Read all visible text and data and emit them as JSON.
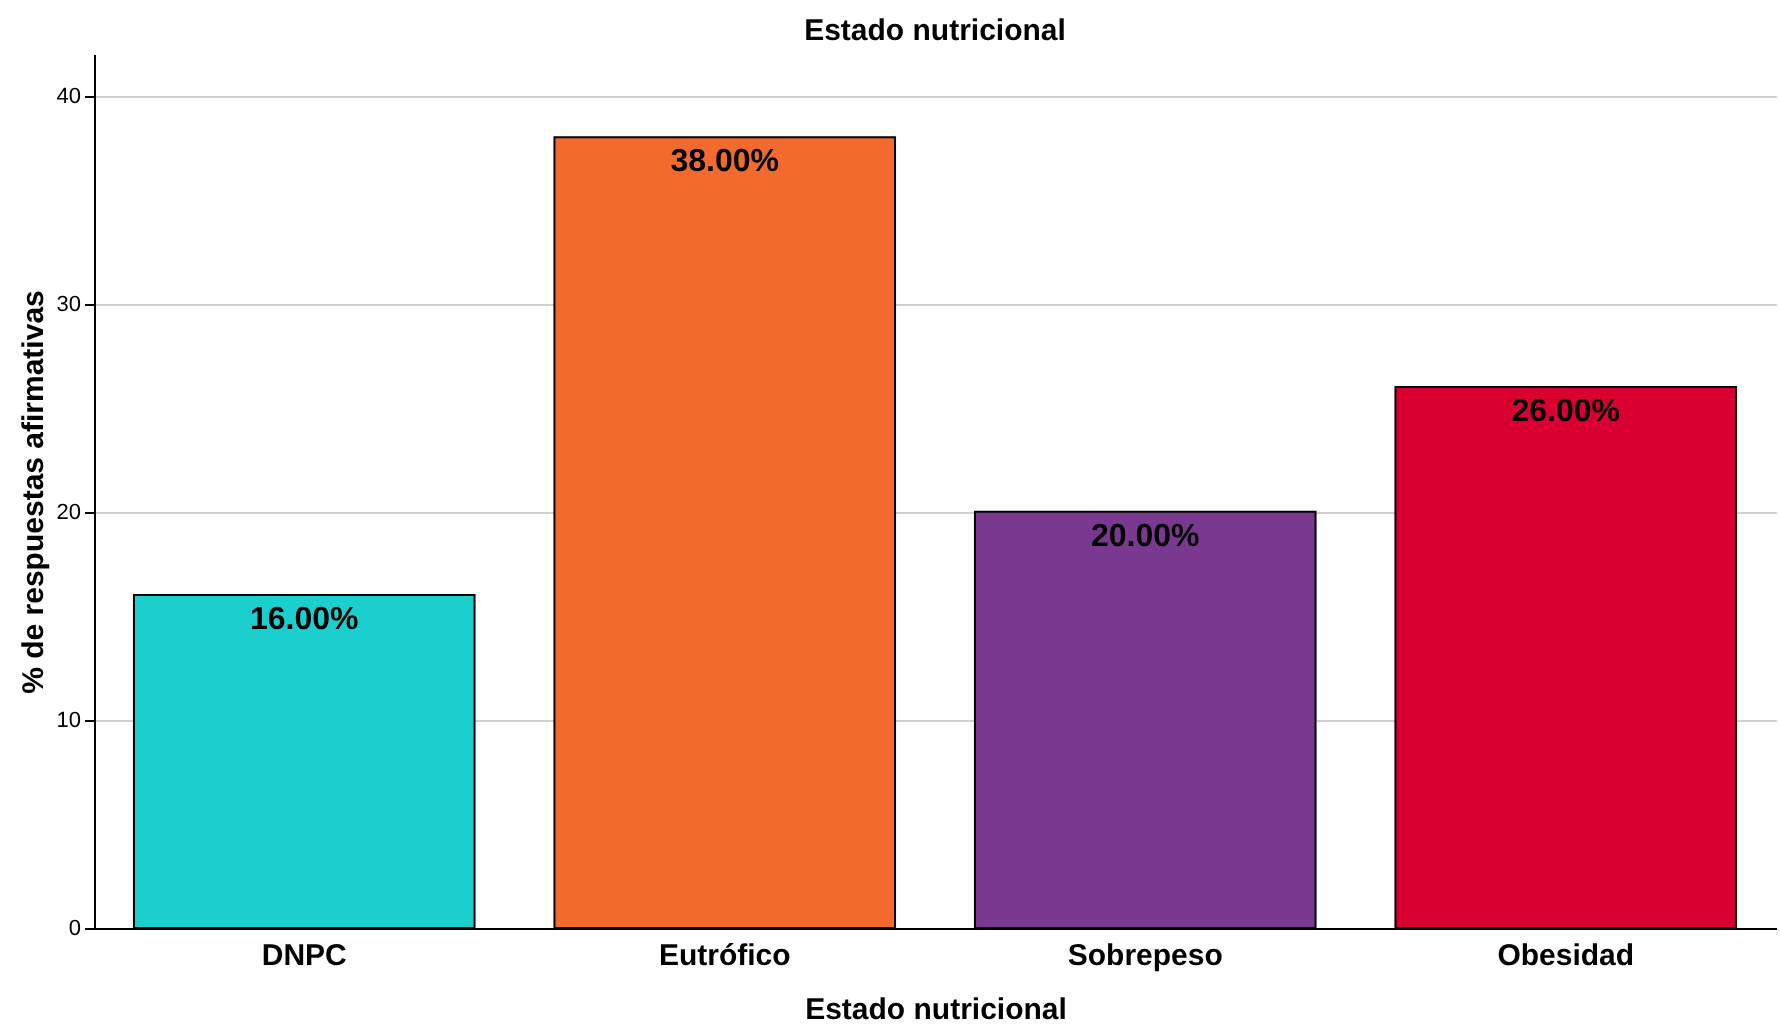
{
  "chart_data": {
    "type": "bar",
    "title": "Estado nutricional",
    "xlabel": "Estado nutricional",
    "ylabel": "% de respuestas afirmativas",
    "categories": [
      "DNPC",
      "Eutrófico",
      "Sobrepeso",
      "Obesidad"
    ],
    "values": [
      16,
      38,
      20,
      26
    ],
    "colors": [
      "#1ccfcf",
      "#f26a2e",
      "#7b3890",
      "#d90031"
    ],
    "value_labels": [
      "16.00%",
      "38.00%",
      "20.00%",
      "26.00%"
    ],
    "ylim": [
      0,
      42
    ],
    "yticks": [
      0,
      10,
      20,
      30,
      40
    ],
    "grid": "y"
  }
}
